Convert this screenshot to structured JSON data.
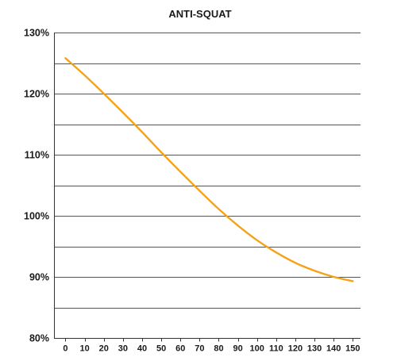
{
  "chart_data": {
    "type": "line",
    "title": "ANTI-SQUAT",
    "xlabel": "",
    "ylabel": "",
    "x_ticks": [
      0,
      10,
      20,
      30,
      40,
      50,
      60,
      70,
      80,
      90,
      100,
      110,
      120,
      130,
      140,
      150
    ],
    "y_ticks": [
      "80%",
      "90%",
      "100%",
      "110%",
      "120%",
      "130%"
    ],
    "y_tick_values": [
      80,
      90,
      100,
      110,
      120,
      130
    ],
    "xlim": [
      -6,
      154
    ],
    "ylim": [
      80,
      130
    ],
    "grid": "horizontal every 5%",
    "legend": "none",
    "series": [
      {
        "color": "#f5a219",
        "x": [
          0,
          10,
          20,
          30,
          40,
          50,
          60,
          70,
          80,
          90,
          100,
          110,
          120,
          130,
          140,
          150
        ],
        "y": [
          125.8,
          123.0,
          120.0,
          116.9,
          113.7,
          110.4,
          107.2,
          104.1,
          101.1,
          98.4,
          96.0,
          94.0,
          92.3,
          91.0,
          90.0,
          89.3
        ]
      }
    ]
  }
}
